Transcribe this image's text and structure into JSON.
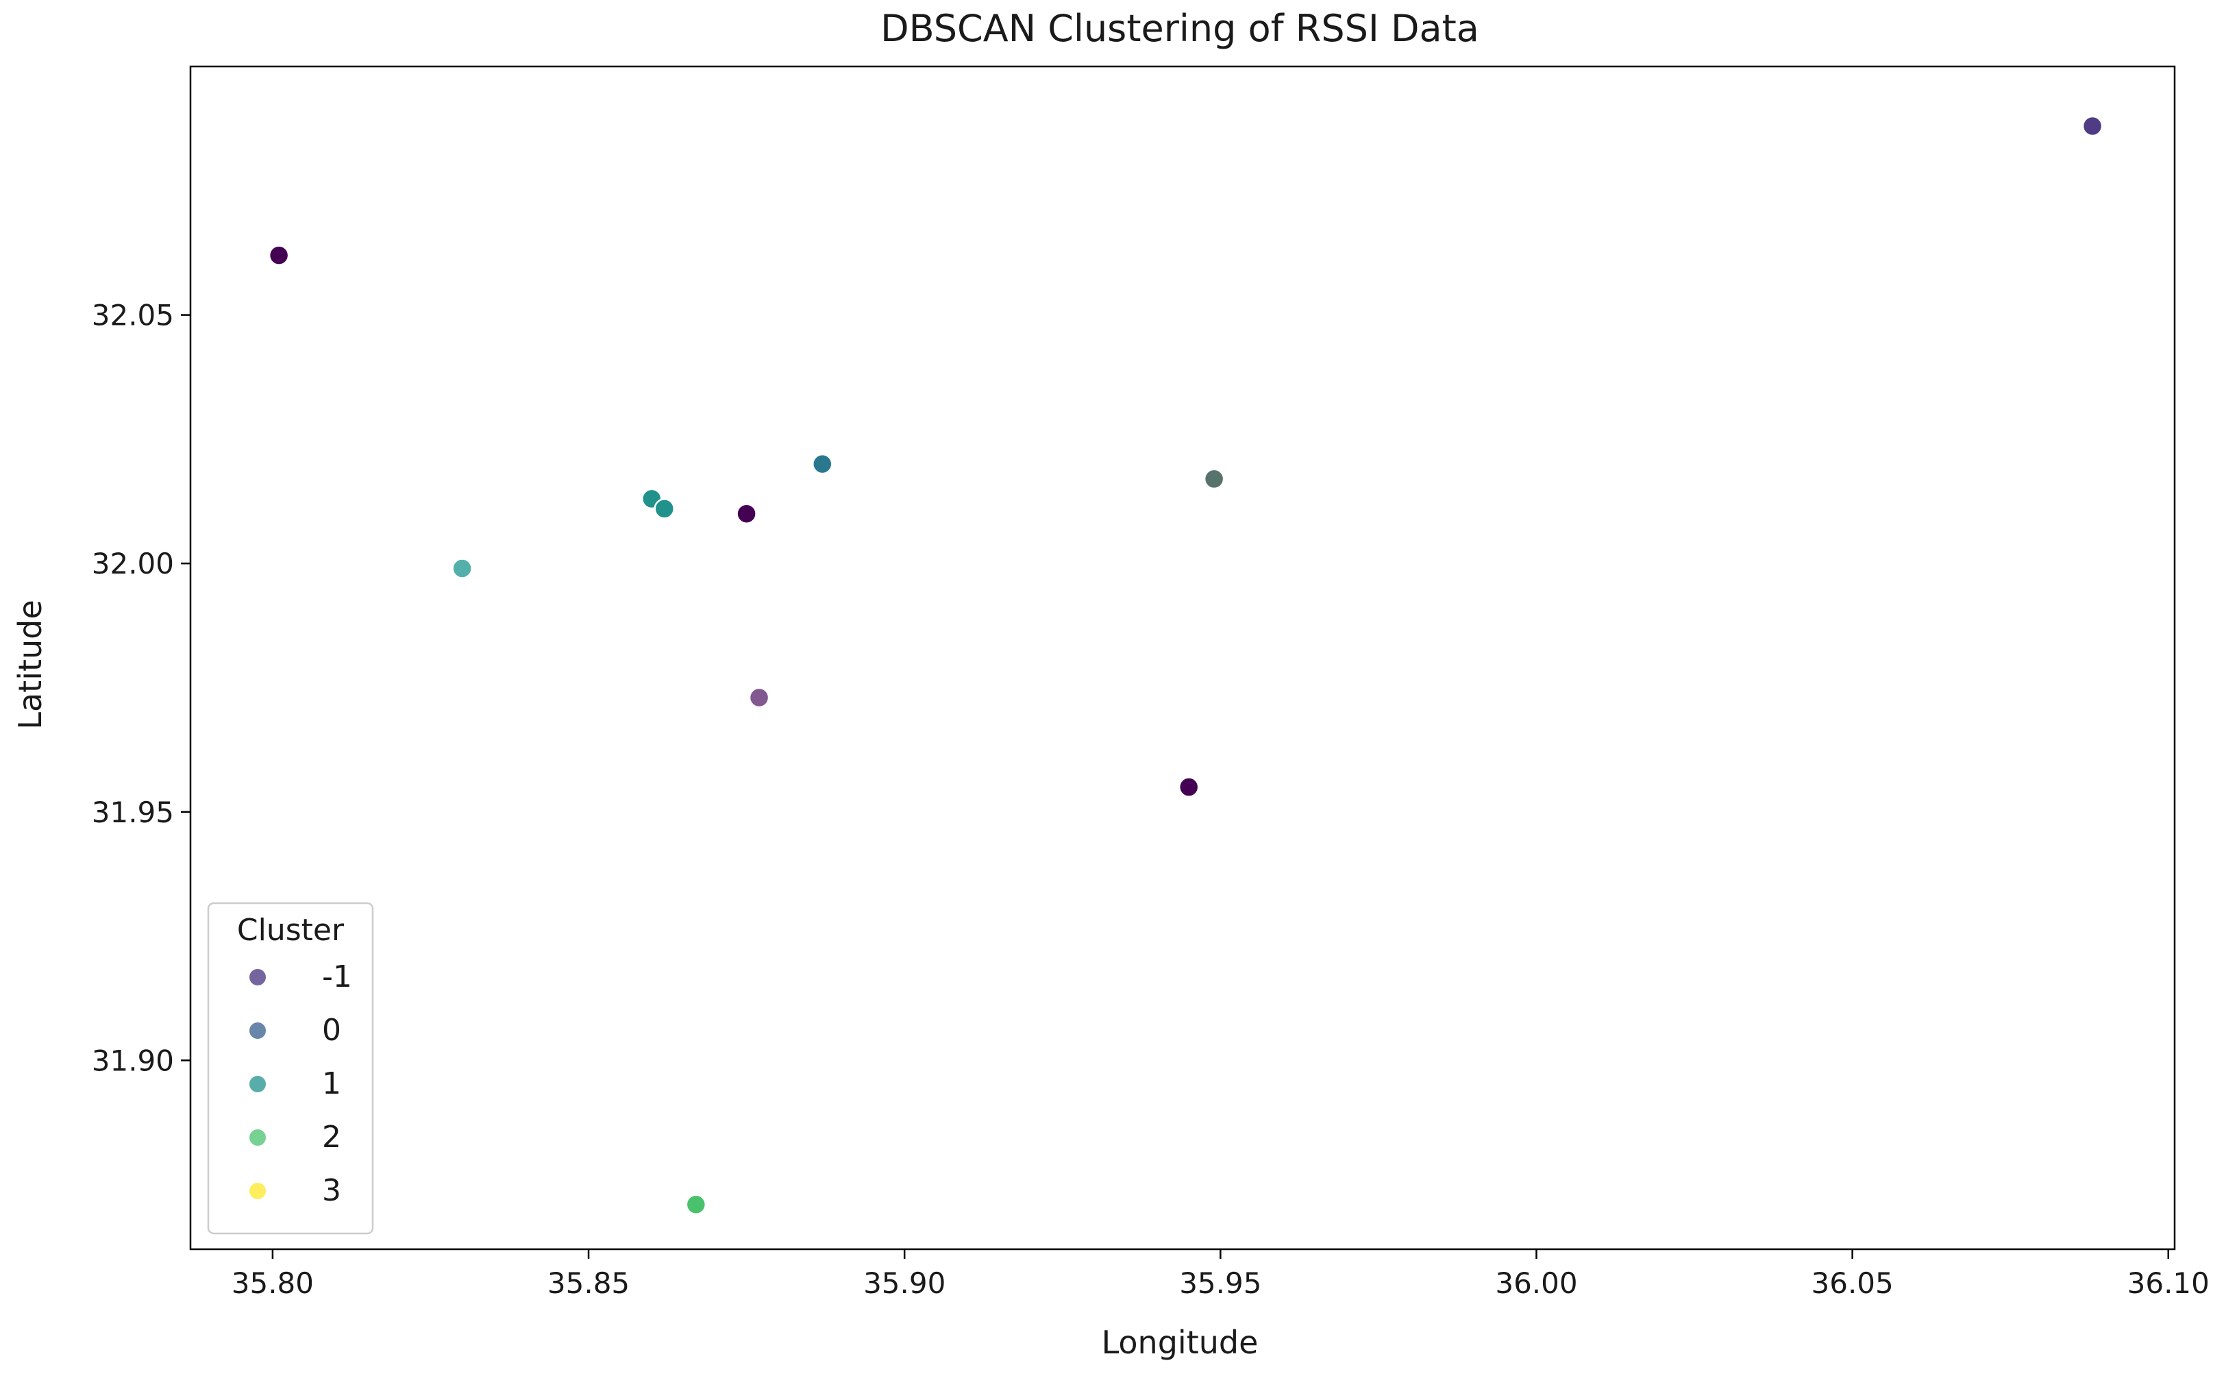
{
  "chart_data": {
    "type": "scatter",
    "title": "DBSCAN Clustering of RSSI Data",
    "xlabel": "Longitude",
    "ylabel": "Latitude",
    "xlim": [
      35.787,
      36.101
    ],
    "ylim": [
      31.862,
      32.1
    ],
    "xticks": [
      35.8,
      35.85,
      35.9,
      35.95,
      36.0,
      36.05,
      36.1
    ],
    "xtick_labels": [
      "35.80",
      "35.85",
      "35.90",
      "35.95",
      "36.00",
      "36.05",
      "36.10"
    ],
    "yticks": [
      31.9,
      31.95,
      32.0,
      32.05
    ],
    "ytick_labels": [
      "31.90",
      "31.95",
      "32.00",
      "32.05"
    ],
    "grid": false,
    "legend": {
      "title": "Cluster",
      "placement": "lower-left",
      "entries": [
        {
          "label": "-1",
          "color": "#46327e"
        },
        {
          "label": "0",
          "color": "#365c8d"
        },
        {
          "label": "1",
          "color": "#21918c"
        },
        {
          "label": "2",
          "color": "#4ac16d"
        },
        {
          "label": "3",
          "color": "#fde725"
        }
      ]
    },
    "points": [
      {
        "x": 35.801,
        "y": 32.062,
        "color": "#440154",
        "opacity": 1.0
      },
      {
        "x": 36.088,
        "y": 32.088,
        "color": "#46327e",
        "opacity": 0.95
      },
      {
        "x": 35.887,
        "y": 32.02,
        "color": "#2a788e",
        "opacity": 1.0
      },
      {
        "x": 35.949,
        "y": 32.017,
        "color": "#fde725",
        "opacity": 0.45
      },
      {
        "x": 35.949,
        "y": 32.017,
        "color": "#3b5b64",
        "opacity": 0.85
      },
      {
        "x": 35.86,
        "y": 32.013,
        "color": "#21918c",
        "opacity": 1.0
      },
      {
        "x": 35.862,
        "y": 32.011,
        "color": "#21918c",
        "opacity": 1.0
      },
      {
        "x": 35.875,
        "y": 32.01,
        "color": "#440154",
        "opacity": 1.0
      },
      {
        "x": 35.83,
        "y": 31.999,
        "color": "#4aaba4",
        "opacity": 0.95
      },
      {
        "x": 35.877,
        "y": 31.973,
        "color": "#7a4f8a",
        "opacity": 0.95
      },
      {
        "x": 35.945,
        "y": 31.955,
        "color": "#440154",
        "opacity": 1.0
      },
      {
        "x": 35.867,
        "y": 31.871,
        "color": "#4ac16d",
        "opacity": 1.0
      }
    ]
  }
}
